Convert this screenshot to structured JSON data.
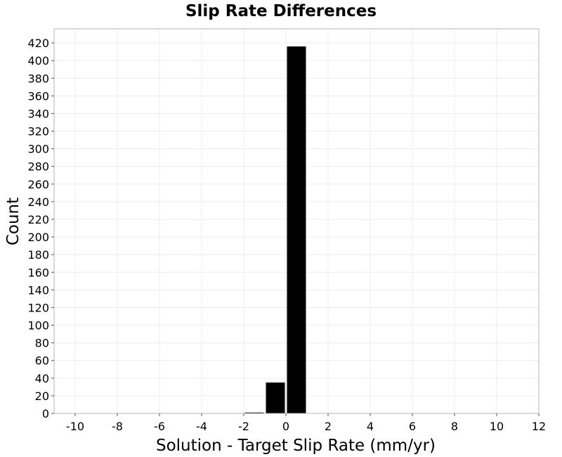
{
  "chart_data": {
    "type": "bar",
    "title": "Slip Rate Differences",
    "xlabel": "Solution - Target Slip Rate (mm/yr)",
    "ylabel": "Count",
    "xlim": [
      -11,
      12
    ],
    "ylim": [
      0,
      436
    ],
    "xticks": [
      -10,
      -8,
      -6,
      -4,
      -2,
      0,
      2,
      4,
      6,
      8,
      10,
      12
    ],
    "yticks": [
      0,
      20,
      40,
      60,
      80,
      100,
      120,
      140,
      160,
      180,
      200,
      220,
      240,
      260,
      280,
      300,
      320,
      340,
      360,
      380,
      400,
      420
    ],
    "bin_width": 1,
    "bins": [
      {
        "x": -2,
        "count": 1
      },
      {
        "x": -1,
        "count": 35
      },
      {
        "x": 0,
        "count": 416
      }
    ],
    "grid": true,
    "bar_color": "#000000",
    "grid_color": "#ececec"
  }
}
